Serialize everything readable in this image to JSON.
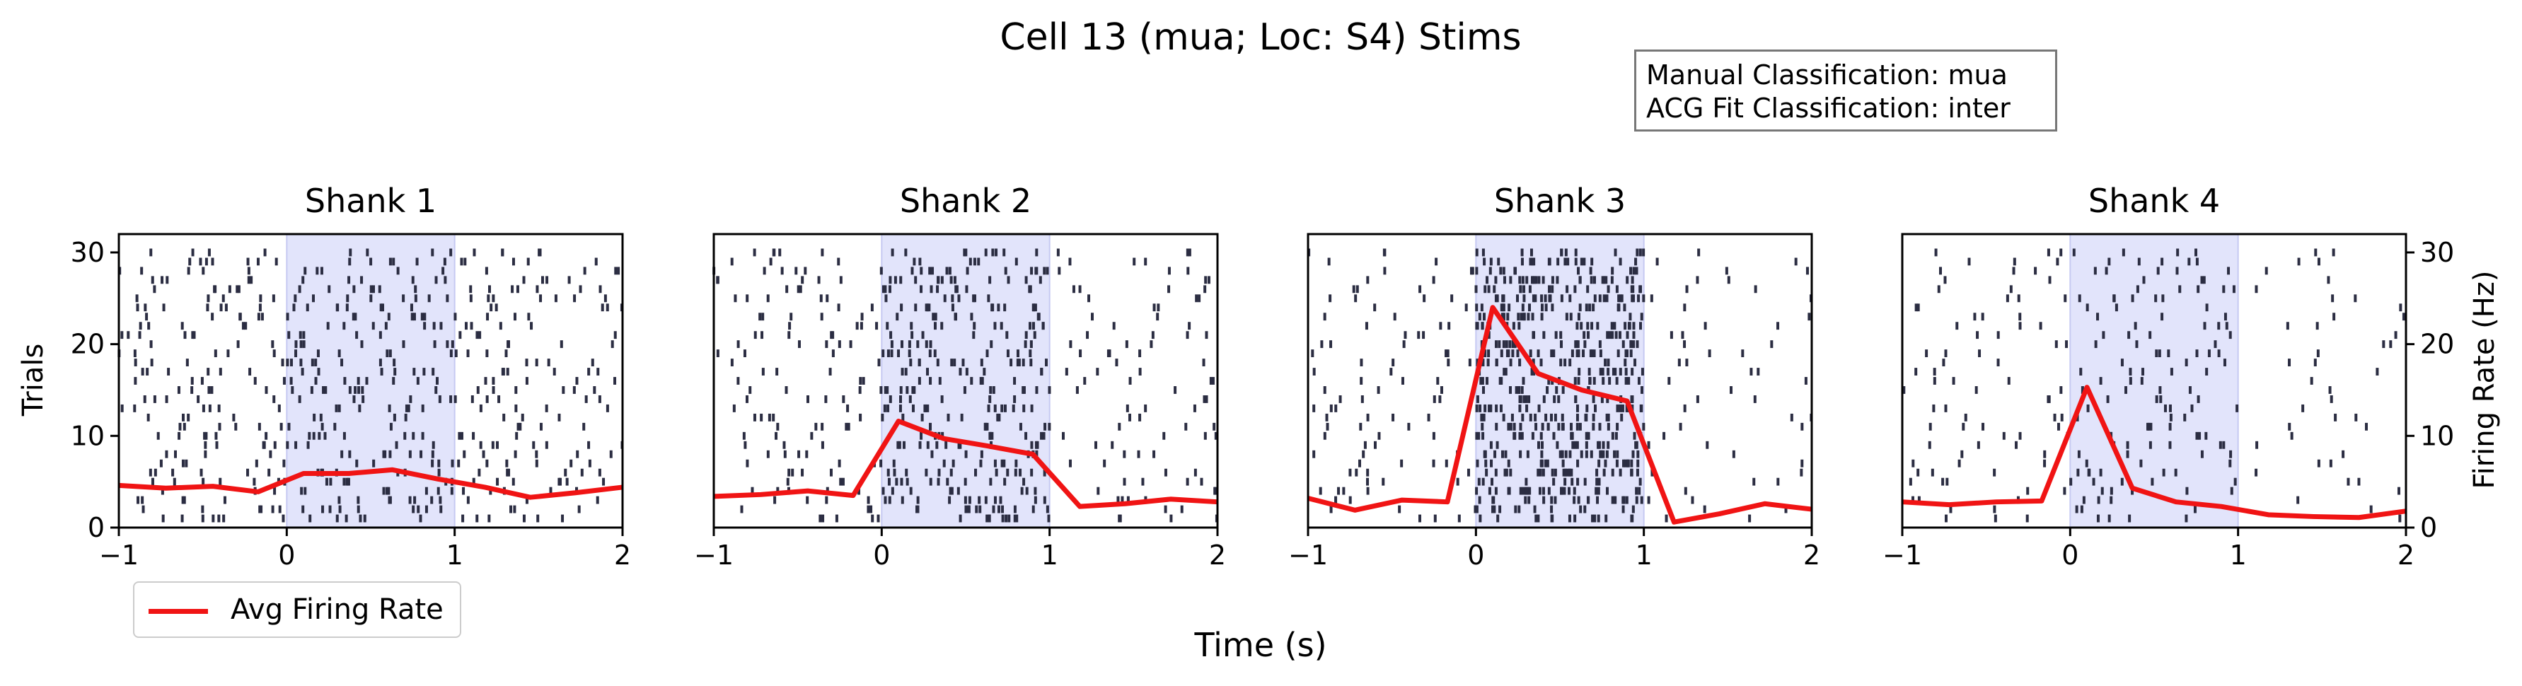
{
  "figure": {
    "title": "Cell 13 (mua; Loc: S4) Stims",
    "xlabel": "Time (s)",
    "ylabel_left": "Trials",
    "ylabel_right": "Firing Rate (Hz)"
  },
  "annotation": {
    "line1": "Manual Classification: mua",
    "line2": "ACG Fit Classification: inter"
  },
  "legend": {
    "label": "Avg Firing Rate",
    "position": "bottom-left"
  },
  "colors": {
    "raster": "#2b2d42",
    "rate_line": "#f01414",
    "stim_shade": "#e2e4fb",
    "stim_edge": "#c6c9f2"
  },
  "chart_data": [
    {
      "type": "raster+line",
      "title": "Shank 1",
      "xlim": [
        -1,
        2
      ],
      "ylim": [
        0,
        32
      ],
      "xticks": [
        "−1",
        "0",
        "1",
        "2"
      ],
      "yticks": [
        "0",
        "10",
        "20",
        "30"
      ],
      "stim_window": [
        0,
        1
      ],
      "trials": 30,
      "raster_rate_hz": [
        5,
        6.5,
        5
      ],
      "avg_rate": {
        "name": "Avg Firing Rate",
        "x": [
          -1,
          -0.72,
          -0.44,
          -0.17,
          0.1,
          0.37,
          0.63,
          0.9,
          1.18,
          1.45,
          1.72,
          2
        ],
        "y": [
          4.6,
          4.3,
          4.5,
          3.9,
          5.9,
          5.9,
          6.3,
          5.3,
          4.4,
          3.3,
          3.8,
          4.4
        ]
      }
    },
    {
      "type": "raster+line",
      "title": "Shank 2",
      "xlim": [
        -1,
        2
      ],
      "ylim": [
        0,
        32
      ],
      "xticks": [
        "−1",
        "0",
        "1",
        "2"
      ],
      "yticks": [
        "0",
        "10",
        "20",
        "30"
      ],
      "stim_window": [
        0,
        1
      ],
      "trials": 30,
      "raster_rate_hz": [
        4,
        10,
        3
      ],
      "avg_rate": {
        "name": "Avg Firing Rate",
        "x": [
          -1,
          -0.72,
          -0.44,
          -0.17,
          0.1,
          0.37,
          0.63,
          0.9,
          1.18,
          1.45,
          1.72,
          2
        ],
        "y": [
          3.4,
          3.6,
          4.0,
          3.5,
          11.6,
          9.7,
          8.9,
          8.0,
          2.3,
          2.6,
          3.1,
          2.8
        ]
      }
    },
    {
      "type": "raster+line",
      "title": "Shank 3",
      "xlim": [
        -1,
        2
      ],
      "ylim": [
        0,
        32
      ],
      "xticks": [
        "−1",
        "0",
        "1",
        "2"
      ],
      "yticks": [
        "0",
        "10",
        "20",
        "30"
      ],
      "stim_window": [
        0,
        1
      ],
      "trials": 30,
      "raster_rate_hz": [
        3,
        18,
        1.8
      ],
      "avg_rate": {
        "name": "Avg Firing Rate",
        "x": [
          -1,
          -0.72,
          -0.44,
          -0.17,
          0.1,
          0.37,
          0.63,
          0.9,
          1.18,
          1.45,
          1.72,
          2
        ],
        "y": [
          3.2,
          1.9,
          3.0,
          2.8,
          24.0,
          16.8,
          15.0,
          13.8,
          0.6,
          1.5,
          2.6,
          2.0
        ]
      }
    },
    {
      "type": "raster+line",
      "title": "Shank 4",
      "xlim": [
        -1,
        2
      ],
      "ylim": [
        0,
        32
      ],
      "xticks": [
        "−1",
        "0",
        "1",
        "2"
      ],
      "yticks": [
        "0",
        "10",
        "20",
        "30"
      ],
      "yticks_right": [
        "0",
        "10",
        "20",
        "30"
      ],
      "stim_window": [
        0,
        1
      ],
      "trials": 30,
      "raster_rate_hz": [
        2.6,
        4.5,
        1.4
      ],
      "avg_rate": {
        "name": "Avg Firing Rate",
        "x": [
          -1,
          -0.72,
          -0.44,
          -0.17,
          0.1,
          0.37,
          0.63,
          0.9,
          1.18,
          1.45,
          1.72,
          2
        ],
        "y": [
          2.8,
          2.5,
          2.8,
          2.9,
          15.3,
          4.3,
          2.8,
          2.3,
          1.4,
          1.2,
          1.1,
          1.8
        ]
      }
    }
  ]
}
